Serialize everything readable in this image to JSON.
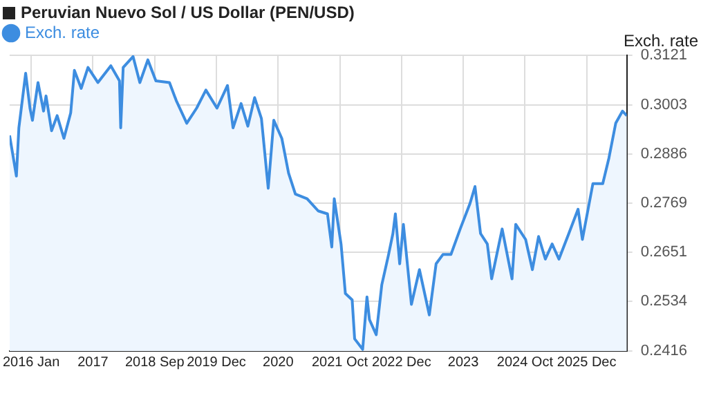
{
  "chart_data": {
    "type": "area",
    "title": "Peruvian Nuevo Sol / US Dollar (PEN/USD)",
    "ylabel": "Exch. rate",
    "x": [
      2015.95,
      2016.06,
      2016.1,
      2016.21,
      2016.28,
      2016.32,
      2016.41,
      2016.5,
      2016.54,
      2016.63,
      2016.72,
      2016.83,
      2016.94,
      2017.0,
      2017.11,
      2017.22,
      2017.38,
      2017.59,
      2017.73,
      2017.75,
      2017.79,
      2017.95,
      2018.06,
      2018.19,
      2018.32,
      2018.54,
      2018.65,
      2018.82,
      2018.98,
      2019.13,
      2019.31,
      2019.48,
      2019.57,
      2019.7,
      2019.81,
      2019.92,
      2020.03,
      2020.14,
      2020.23,
      2020.36,
      2020.47,
      2020.58,
      2020.77,
      2020.95,
      2021.1,
      2021.17,
      2021.21,
      2021.32,
      2021.39,
      2021.5,
      2021.54,
      2021.67,
      2021.74,
      2021.78,
      2021.89,
      2021.98,
      2022.09,
      2022.16,
      2022.2,
      2022.27,
      2022.33,
      2022.46,
      2022.59,
      2022.75,
      2022.86,
      2022.97,
      2023.1,
      2023.25,
      2023.41,
      2023.49,
      2023.58,
      2023.69,
      2023.76,
      2023.93,
      2024.09,
      2024.15,
      2024.31,
      2024.42,
      2024.52,
      2024.63,
      2024.74,
      2024.85,
      2025.01,
      2025.16,
      2025.23,
      2025.4,
      2025.56,
      2025.66,
      2025.77,
      2025.88,
      2025.95
    ],
    "series": [
      {
        "name": "Exch. rate",
        "color": "#3d8de0",
        "values": [
          0.293,
          0.2833,
          0.2948,
          0.3078,
          0.2995,
          0.2966,
          0.3056,
          0.2988,
          0.3024,
          0.2941,
          0.2977,
          0.2923,
          0.2984,
          0.3085,
          0.3042,
          0.3092,
          0.3056,
          0.3096,
          0.306,
          0.2948,
          0.3092,
          0.3118,
          0.3056,
          0.311,
          0.306,
          0.3056,
          0.3013,
          0.2959,
          0.2995,
          0.3038,
          0.2995,
          0.3049,
          0.2948,
          0.3006,
          0.2952,
          0.302,
          0.297,
          0.2804,
          0.2966,
          0.2923,
          0.284,
          0.279,
          0.2779,
          0.275,
          0.2743,
          0.2664,
          0.2779,
          0.2671,
          0.2553,
          0.2538,
          0.2445,
          0.242,
          0.2545,
          0.2491,
          0.2455,
          0.2574,
          0.2646,
          0.2696,
          0.2743,
          0.2624,
          0.2718,
          0.2527,
          0.261,
          0.2502,
          0.2624,
          0.2646,
          0.2646,
          0.2707,
          0.2768,
          0.2808,
          0.2696,
          0.2671,
          0.2588,
          0.2707,
          0.2588,
          0.2718,
          0.2682,
          0.261,
          0.2689,
          0.2635,
          0.2671,
          0.2635,
          0.2696,
          0.2754,
          0.2682,
          0.2815,
          0.2815,
          0.2876,
          0.2959,
          0.2988,
          0.2977
        ]
      }
    ],
    "xlim": [
      2015.95,
      2025.95
    ],
    "xticks": [
      {
        "value": 2016.3,
        "label": "2016 Jan"
      },
      {
        "value": 2017.3,
        "label": "2017"
      },
      {
        "value": 2018.3,
        "label": "2018 Sep"
      },
      {
        "value": 2019.3,
        "label": "2019 Dec"
      },
      {
        "value": 2020.3,
        "label": "2020"
      },
      {
        "value": 2021.3,
        "label": "2021 Oct"
      },
      {
        "value": 2022.3,
        "label": "2022 Dec"
      },
      {
        "value": 2023.3,
        "label": "2023"
      },
      {
        "value": 2024.3,
        "label": "2024 Oct"
      },
      {
        "value": 2025.3,
        "label": "2025 Dec"
      }
    ],
    "ylim": [
      0.2416,
      0.3121
    ],
    "yticks": [
      0.2416,
      0.2534,
      0.2651,
      0.2769,
      0.2886,
      0.3003,
      0.3121
    ],
    "grid": true,
    "legend": "top left",
    "marker": "none",
    "line_style": "solid"
  }
}
